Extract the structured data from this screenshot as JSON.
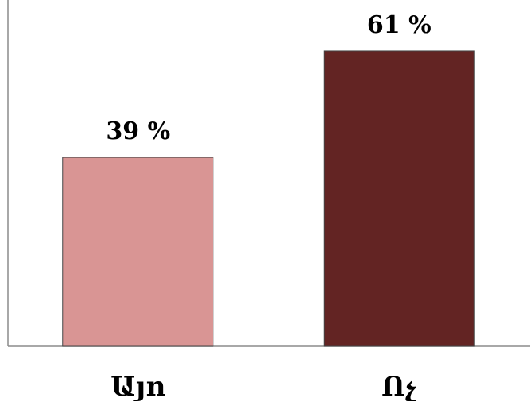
{
  "chart_data": {
    "type": "bar",
    "categories": [
      "Այո",
      "Ոչ"
    ],
    "values": [
      39,
      61
    ],
    "data_labels": [
      "39 %",
      "61 %"
    ],
    "colors": [
      "#d99594",
      "#632423"
    ],
    "bar_stroke": "#444444",
    "axis_color": "#8c8c8c",
    "title": "",
    "xlabel": "",
    "ylabel": "",
    "ylim": [
      0,
      70
    ],
    "grid": false,
    "legend": "none"
  }
}
